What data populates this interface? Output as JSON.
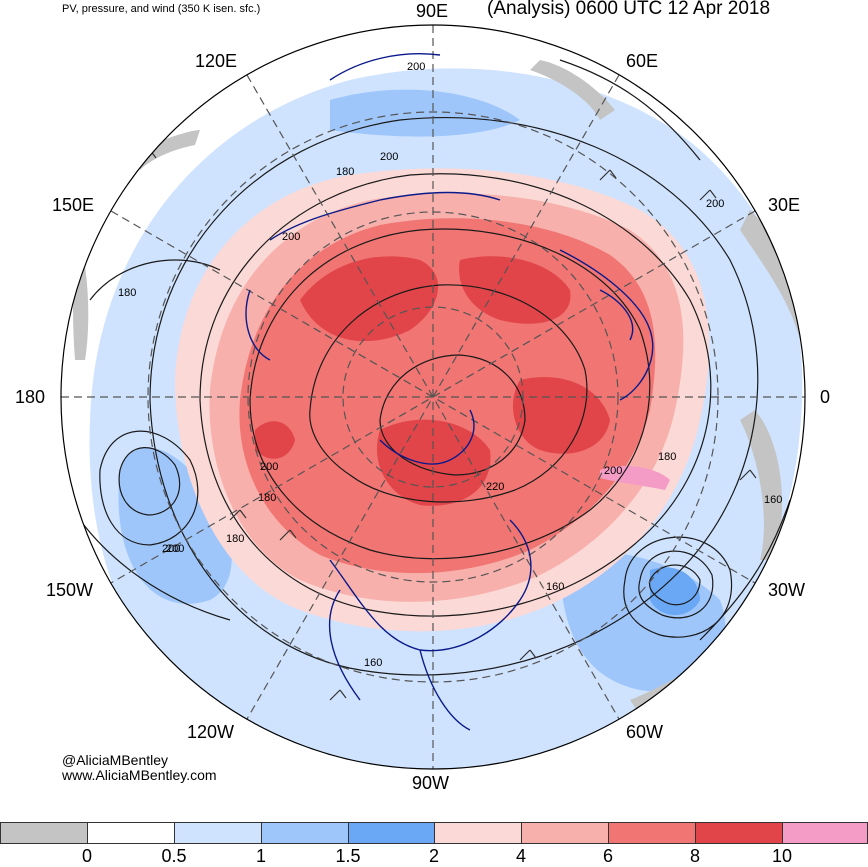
{
  "header": {
    "subtitle": "PV, pressure, and wind (350 K isen. sfc.)",
    "title": "(Analysis) 0600 UTC 12 Apr 2018"
  },
  "credits": {
    "handle": "@AliciaMBentley",
    "website": "www.AliciaMBentley.com"
  },
  "longitude_labels": {
    "n90e": "90E",
    "n60e": "60E",
    "n30e": "30E",
    "n0": "0",
    "n30w": "30W",
    "n60w": "60W",
    "n90w": "90W",
    "n120w": "120W",
    "n150w": "150W",
    "n180": "180",
    "n150e": "150E",
    "n120e": "120E"
  },
  "contour_labels": [
    "200",
    "200",
    "180",
    "200",
    "200",
    "180",
    "200",
    "200",
    "180",
    "180",
    "200",
    "220",
    "160",
    "160",
    "160",
    "180",
    "200"
  ],
  "colorbar": {
    "ticks": [
      "0",
      "0.5",
      "1",
      "1.5",
      "2",
      "4",
      "6",
      "8",
      "10"
    ],
    "colors": [
      "#c4c4c4",
      "#ffffff",
      "#cfe3ff",
      "#9fc6fb",
      "#6aa7f4",
      "#fbd9d6",
      "#f7b0ab",
      "#f07573",
      "#e1454a",
      "#f59cc6"
    ]
  }
}
